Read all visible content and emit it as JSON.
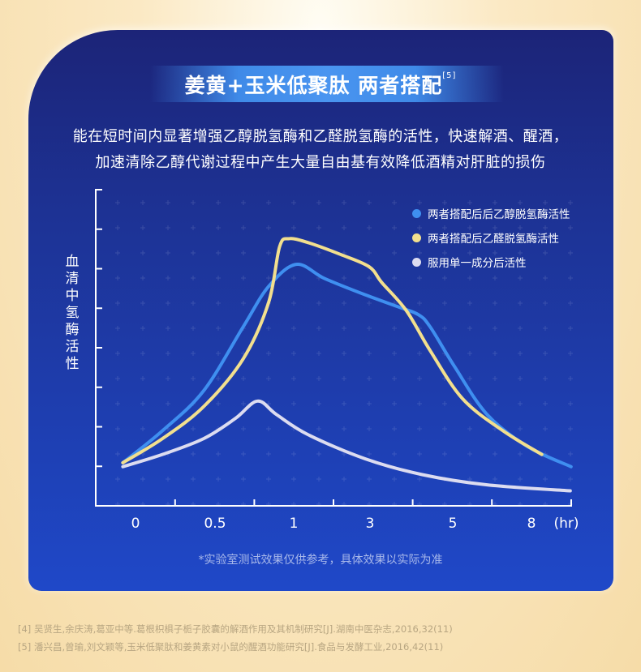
{
  "header": {
    "title": "姜黄+玉米低聚肽 两者搭配",
    "title_ref": "[5]",
    "desc_line1": "能在短时间内显著增强乙醇脱氢酶和乙醛脱氢酶的活性，快速解酒、醒酒，",
    "desc_line2": "加速清除乙醇代谢过程中产生大量自由基有效降低酒精对肝脏的损伤"
  },
  "note": "*实验室测试效果仅供参考，具体效果以实际为准",
  "references": [
    "[4] 吴贤生,余庆涛,葛亚中等.葛根枳椇子栀子胶囊的解酒作用及其机制研究[J].湖南中医杂志,2016,32(11)",
    "[5] 潘兴昌,曾瑜,刘文颖等,玉米低聚肽和姜黄素对小鼠的醒酒功能研究[J].食品与发酵工业,2016,42(11)"
  ],
  "chart_data": {
    "type": "line",
    "title": "",
    "xlabel": "(hr)",
    "ylabel": "血清中氢酶活性",
    "x_ticks": [
      0,
      0.5,
      1,
      3,
      5,
      8
    ],
    "x_tick_labels": [
      "0",
      "0.5",
      "1",
      "3",
      "5",
      "8"
    ],
    "y_ticks_count": 8,
    "y_tick_labels": [],
    "ylim": [
      0,
      8
    ],
    "grid": "dotted crosses",
    "legend_position": "top-right",
    "series": [
      {
        "name": "两者搭配后后乙醇脱氢酶活性",
        "color": "#3f8ff0",
        "x": [
          -0.08,
          0.17,
          0.43,
          0.68,
          0.84,
          1.06,
          1.78,
          2.8,
          3.62,
          4.14,
          4.44,
          5.09,
          6.32,
          7.85,
          9.5
        ],
        "y": [
          1.09,
          1.9,
          2.91,
          4.53,
          5.55,
          6.11,
          5.75,
          5.34,
          5.04,
          4.84,
          4.53,
          3.52,
          2.31,
          1.5,
          0.99
        ]
      },
      {
        "name": "两者搭配后乙醛脱氢酶活性",
        "color": "#f2df8e",
        "x": [
          -0.08,
          0.17,
          0.43,
          0.68,
          0.84,
          0.91,
          0.97,
          1.36,
          2.18,
          2.9,
          3.22,
          3.84,
          4.44,
          5.39,
          6.92,
          8.39
        ],
        "y": [
          1.09,
          1.7,
          2.51,
          3.72,
          5.14,
          6.56,
          6.76,
          6.66,
          6.36,
          6.05,
          5.65,
          4.94,
          3.93,
          2.71,
          1.9,
          1.3
        ]
      },
      {
        "name": "服用单一成分后活性",
        "color": "#dcdcf0",
        "x": [
          -0.08,
          0.17,
          0.43,
          0.63,
          0.77,
          0.89,
          1.36,
          2.8,
          4.24,
          6.32,
          9.47
        ],
        "y": [
          0.99,
          1.3,
          1.7,
          2.21,
          2.65,
          2.31,
          1.8,
          1.19,
          0.79,
          0.53,
          0.38
        ]
      }
    ]
  }
}
